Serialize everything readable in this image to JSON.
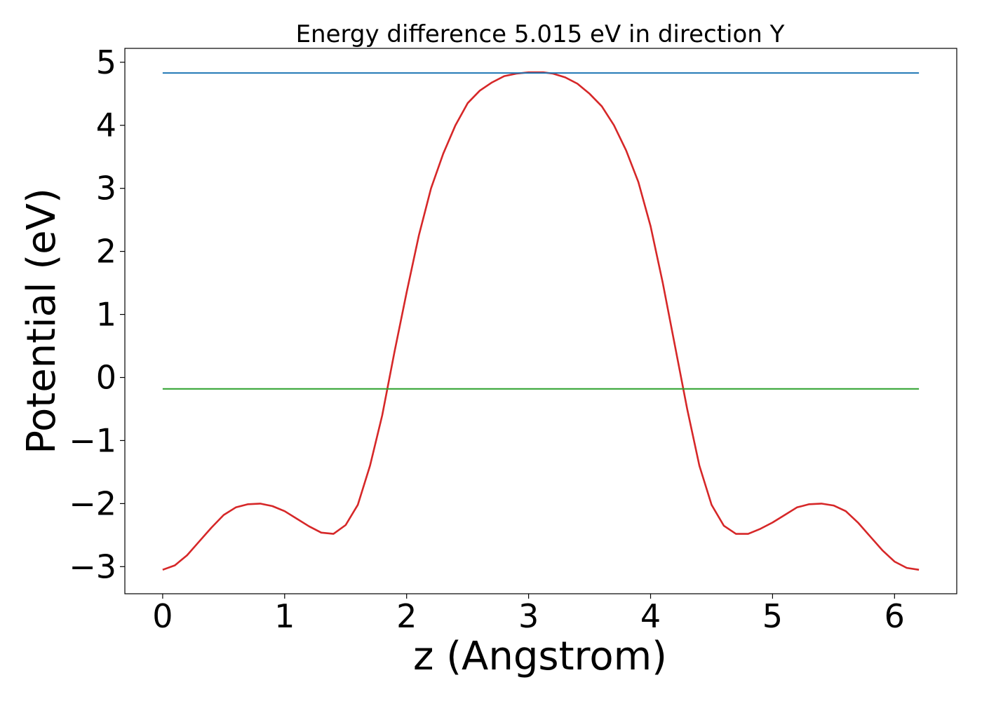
{
  "chart_data": {
    "type": "line",
    "title": "Energy difference 5.015 eV in direction Y",
    "xlabel": "z (Angstrom)",
    "ylabel": "Potential (eV)",
    "xlim": [
      -0.31,
      6.51
    ],
    "ylim": [
      -3.43,
      5.22
    ],
    "xticks": [
      0,
      1,
      2,
      3,
      4,
      5,
      6
    ],
    "yticks": [
      -3,
      -2,
      -1,
      0,
      1,
      2,
      3,
      4,
      5
    ],
    "xtick_labels": [
      "0",
      "1",
      "2",
      "3",
      "4",
      "5",
      "6"
    ],
    "ytick_labels": [
      "−3",
      "−2",
      "−1",
      "0",
      "1",
      "2",
      "3",
      "4",
      "5"
    ],
    "grid": false,
    "legend": "none",
    "series": [
      {
        "color": "#d62728",
        "x": [
          0.0,
          0.1,
          0.2,
          0.3,
          0.4,
          0.5,
          0.6,
          0.7,
          0.8,
          0.9,
          1.0,
          1.1,
          1.2,
          1.3,
          1.4,
          1.5,
          1.6,
          1.7,
          1.8,
          1.9,
          2.0,
          2.1,
          2.2,
          2.3,
          2.4,
          2.5,
          2.6,
          2.7,
          2.8,
          2.9,
          3.0,
          3.12,
          3.2,
          3.3,
          3.4,
          3.5,
          3.6,
          3.7,
          3.8,
          3.9,
          4.0,
          4.1,
          4.2,
          4.3,
          4.4,
          4.5,
          4.6,
          4.7,
          4.8,
          4.9,
          5.0,
          5.1,
          5.2,
          5.3,
          5.4,
          5.5,
          5.6,
          5.7,
          5.8,
          5.9,
          6.0,
          6.1,
          6.2
        ],
        "y": [
          -3.05,
          -2.98,
          -2.82,
          -2.6,
          -2.38,
          -2.18,
          -2.06,
          -2.01,
          -2.0,
          -2.04,
          -2.12,
          -2.24,
          -2.36,
          -2.46,
          -2.48,
          -2.34,
          -2.02,
          -1.4,
          -0.6,
          0.4,
          1.35,
          2.25,
          3.0,
          3.55,
          4.0,
          4.35,
          4.55,
          4.68,
          4.78,
          4.82,
          4.84,
          4.84,
          4.82,
          4.76,
          4.66,
          4.5,
          4.3,
          4.0,
          3.6,
          3.1,
          2.4,
          1.5,
          0.5,
          -0.5,
          -1.4,
          -2.02,
          -2.35,
          -2.48,
          -2.48,
          -2.4,
          -2.3,
          -2.18,
          -2.06,
          -2.01,
          -2.0,
          -2.03,
          -2.12,
          -2.3,
          -2.52,
          -2.74,
          -2.92,
          -3.02,
          -3.05
        ]
      },
      {
        "color": "#1f77b4",
        "x": [
          0.0,
          6.2
        ],
        "y": [
          4.83,
          4.83
        ]
      },
      {
        "color": "#2ca02c",
        "x": [
          0.0,
          6.2
        ],
        "y": [
          -0.18,
          -0.18
        ]
      }
    ]
  }
}
